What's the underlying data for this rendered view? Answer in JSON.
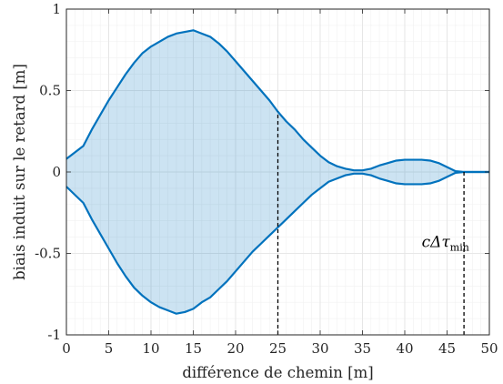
{
  "chart_data": {
    "type": "area",
    "title": "",
    "xlabel": "différence de chemin [m]",
    "ylabel": "biais induit sur le retard [m]",
    "xlim": [
      0,
      50
    ],
    "ylim": [
      -1,
      1
    ],
    "x_ticks": [
      "0",
      "5",
      "10",
      "15",
      "20",
      "25",
      "30",
      "35",
      "40",
      "45",
      "50"
    ],
    "y_ticks": [
      "-1",
      "-0.5",
      "0",
      "0.5",
      "1"
    ],
    "grid": true,
    "minor_grid": true,
    "colors": {
      "line": "#0072BD",
      "fill": "#0072BD",
      "fill_opacity": 0.2
    },
    "series": [
      {
        "role": "upper",
        "x": [
          0,
          2,
          3,
          4,
          5,
          6,
          7,
          8,
          9,
          10,
          11,
          12,
          13,
          14,
          15,
          16,
          17,
          18,
          19,
          20,
          21,
          22,
          23,
          24,
          25,
          26,
          27,
          28,
          29,
          30,
          31,
          32,
          33,
          34,
          35,
          36,
          37,
          38,
          39,
          40,
          41,
          42,
          43,
          44,
          45,
          46,
          47,
          48,
          49,
          50
        ],
        "y": [
          0.08,
          0.16,
          0.26,
          0.35,
          0.44,
          0.52,
          0.6,
          0.67,
          0.73,
          0.77,
          0.8,
          0.83,
          0.85,
          0.86,
          0.87,
          0.85,
          0.83,
          0.79,
          0.74,
          0.68,
          0.62,
          0.56,
          0.5,
          0.44,
          0.37,
          0.31,
          0.26,
          0.2,
          0.15,
          0.1,
          0.06,
          0.035,
          0.02,
          0.01,
          0.01,
          0.02,
          0.04,
          0.055,
          0.07,
          0.075,
          0.075,
          0.075,
          0.07,
          0.055,
          0.03,
          0.005,
          0.0,
          0.0,
          0.0,
          0.0
        ]
      },
      {
        "role": "lower",
        "x": [
          0,
          2,
          3,
          4,
          5,
          6,
          7,
          8,
          9,
          10,
          11,
          12,
          13,
          14,
          15,
          16,
          17,
          18,
          19,
          20,
          21,
          22,
          23,
          24,
          25,
          26,
          27,
          28,
          29,
          30,
          31,
          32,
          33,
          34,
          35,
          36,
          37,
          38,
          39,
          40,
          41,
          42,
          43,
          44,
          45,
          46,
          47,
          48,
          49,
          50
        ],
        "y": [
          -0.09,
          -0.19,
          -0.29,
          -0.38,
          -0.47,
          -0.56,
          -0.64,
          -0.71,
          -0.76,
          -0.8,
          -0.83,
          -0.85,
          -0.87,
          -0.86,
          -0.84,
          -0.8,
          -0.77,
          -0.72,
          -0.67,
          -0.61,
          -0.55,
          -0.49,
          -0.44,
          -0.39,
          -0.34,
          -0.29,
          -0.24,
          -0.19,
          -0.14,
          -0.1,
          -0.06,
          -0.04,
          -0.02,
          -0.01,
          -0.01,
          -0.02,
          -0.04,
          -0.055,
          -0.07,
          -0.075,
          -0.075,
          -0.075,
          -0.07,
          -0.055,
          -0.03,
          -0.005,
          0.0,
          0.0,
          0.0,
          0.0
        ]
      }
    ],
    "vlines": [
      {
        "x": 25,
        "from": -1,
        "to_series": "upper",
        "style": "dashed"
      },
      {
        "x": 47,
        "from": -1,
        "to_series": "upper",
        "style": "dashed"
      }
    ],
    "annotation": {
      "main": "cΔτ",
      "sub": "min",
      "x": 42,
      "y": -0.46
    }
  }
}
